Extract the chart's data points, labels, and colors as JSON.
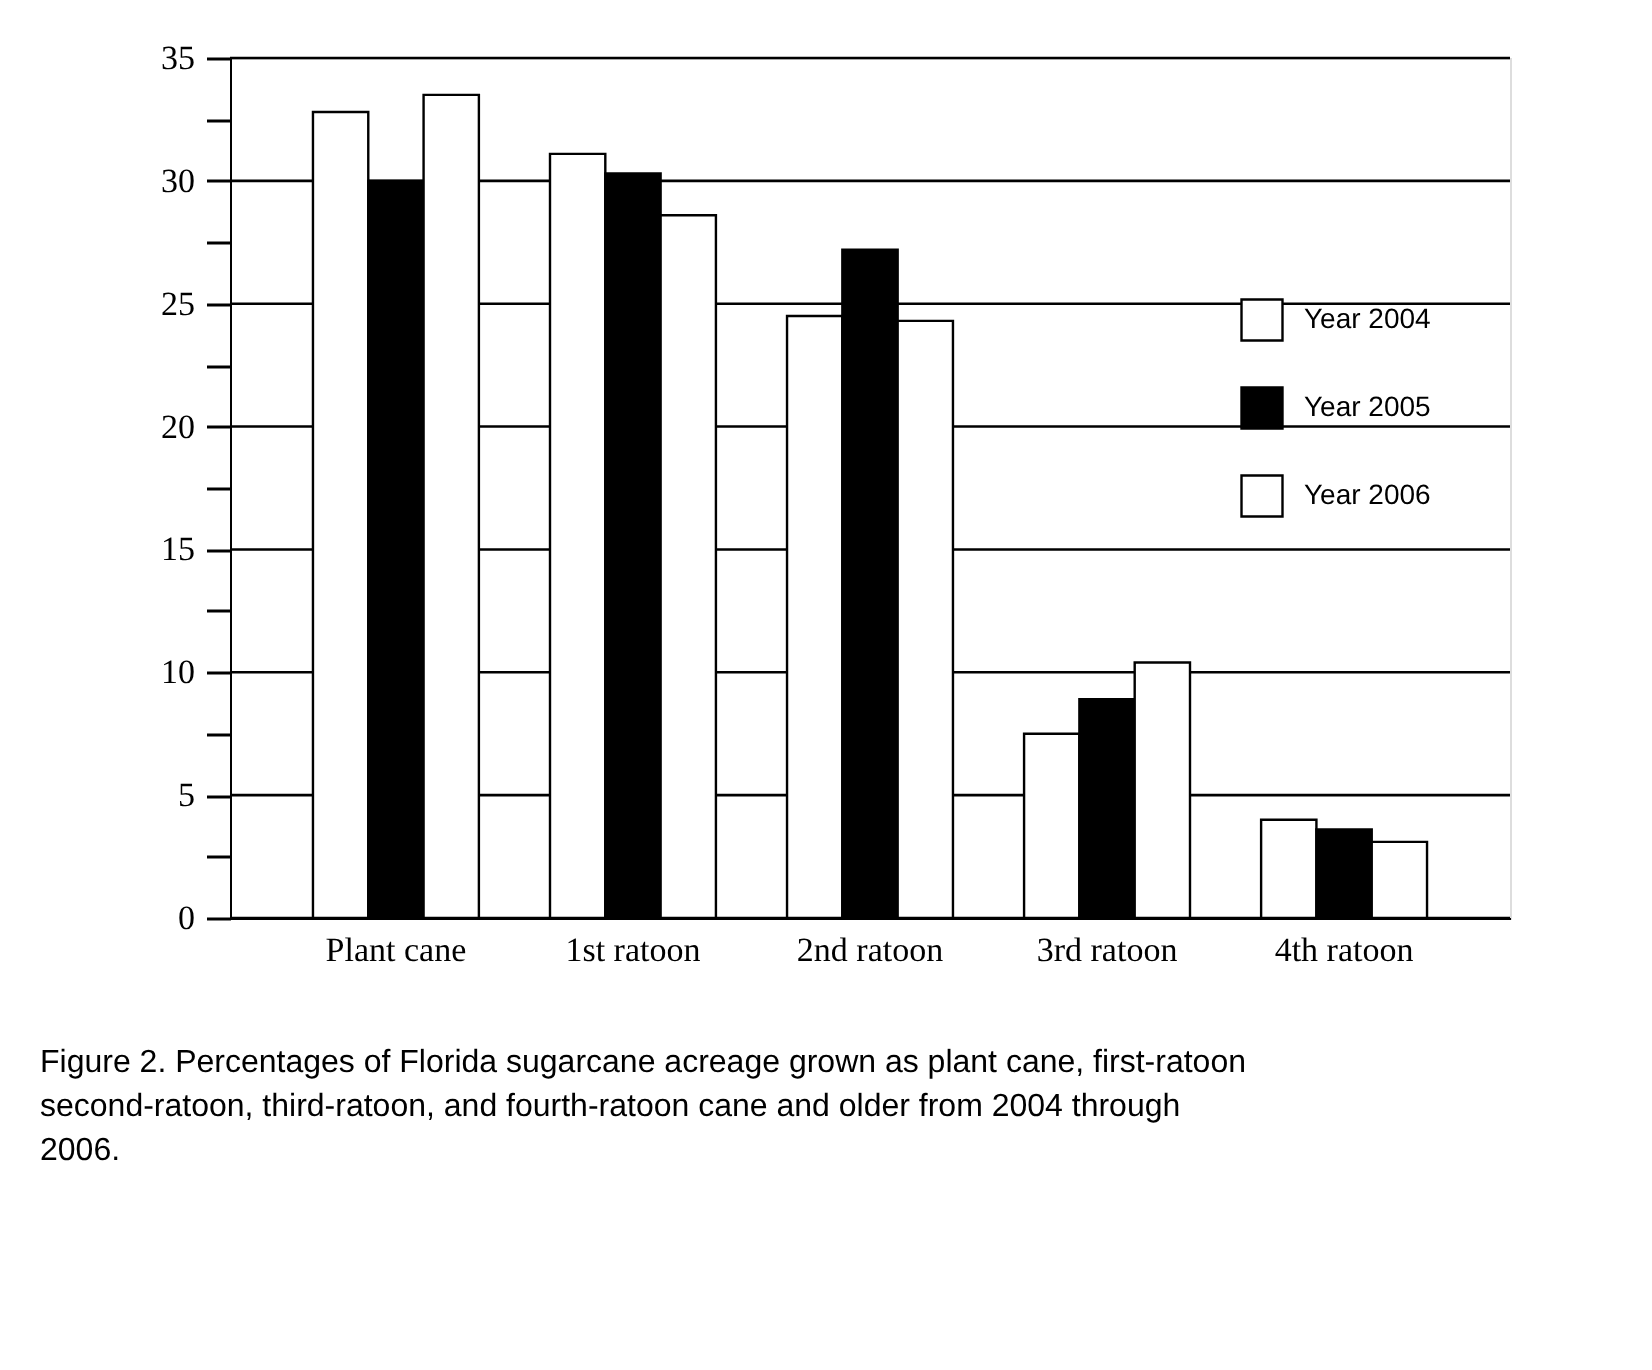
{
  "chart_data": {
    "type": "bar",
    "categories": [
      "Plant cane",
      "1st ratoon",
      "2nd ratoon",
      "3rd ratoon",
      "4th ratoon"
    ],
    "series": [
      {
        "name": "Year 2004",
        "color": "#ffffff",
        "values": [
          32.8,
          31.1,
          24.5,
          7.5,
          4.0
        ]
      },
      {
        "name": "Year 2005",
        "color": "#000000",
        "values": [
          30.0,
          30.3,
          27.2,
          8.9,
          3.6
        ]
      },
      {
        "name": "Year 2006",
        "color": "#ffffff",
        "values": [
          33.5,
          28.6,
          24.3,
          10.4,
          3.1
        ]
      }
    ],
    "ylim": [
      0,
      35
    ],
    "yticks": [
      0,
      {
        "value": 2.5,
        "label": null
      },
      5,
      {
        "value": 7.5,
        "label": null
      },
      10,
      {
        "value": 12.5,
        "label": null
      },
      15,
      {
        "value": 17.5,
        "label": null
      },
      20,
      {
        "value": 22.5,
        "label": null
      },
      25,
      {
        "value": 27.5,
        "label": null
      },
      30,
      {
        "value": 32.5,
        "label": null
      },
      35
    ],
    "grid": "y",
    "legend": "right",
    "annotations": [
      "Figure 2. Percentages of Florida sugarcane acreage grown as plant cane, first-ratoon second-ratoon, third-ratoon, and fourth-ratoon cane and older from 2004 through 2006."
    ]
  }
}
